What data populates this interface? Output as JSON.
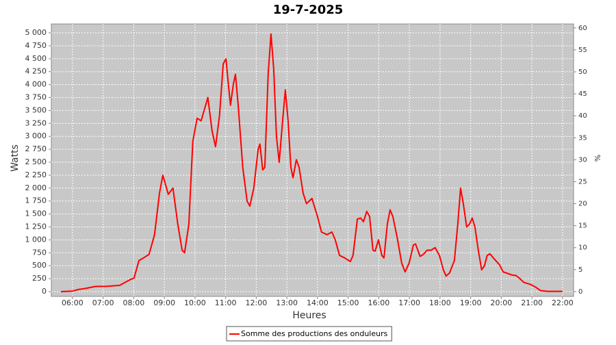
{
  "chart_data": {
    "type": "line",
    "title": "19-7-2025",
    "x_label": "Heures",
    "y_label": "Watts",
    "y2_label": "%",
    "x": [
      5.62,
      6.0,
      6.2,
      6.42,
      6.76,
      7.09,
      7.54,
      7.88,
      8.01,
      8.17,
      8.32,
      8.5,
      8.68,
      8.84,
      8.95,
      9.13,
      9.28,
      9.44,
      9.58,
      9.66,
      9.8,
      9.93,
      10.07,
      10.2,
      10.42,
      10.56,
      10.67,
      10.8,
      10.92,
      11.01,
      11.09,
      11.16,
      11.25,
      11.32,
      11.41,
      11.56,
      11.7,
      11.79,
      11.92,
      12.06,
      12.12,
      12.21,
      12.28,
      12.39,
      12.48,
      12.57,
      12.66,
      12.75,
      12.86,
      12.95,
      13.04,
      13.13,
      13.2,
      13.31,
      13.4,
      13.53,
      13.64,
      13.82,
      14.0,
      14.13,
      14.31,
      14.47,
      14.58,
      14.72,
      14.89,
      15.07,
      15.16,
      15.3,
      15.41,
      15.5,
      15.61,
      15.7,
      15.81,
      15.88,
      15.99,
      16.1,
      16.17,
      16.28,
      16.37,
      16.46,
      16.6,
      16.75,
      16.86,
      16.99,
      17.13,
      17.2,
      17.35,
      17.46,
      17.58,
      17.71,
      17.84,
      17.98,
      18.11,
      18.2,
      18.31,
      18.47,
      18.58,
      18.67,
      18.76,
      18.87,
      18.96,
      19.05,
      19.14,
      19.25,
      19.36,
      19.45,
      19.54,
      19.63,
      19.77,
      19.94,
      20.06,
      20.21,
      20.35,
      20.48,
      20.61,
      20.73,
      20.95,
      21.11,
      21.28,
      21.51,
      22.0
    ],
    "series": [
      {
        "name": "Somme des productions des onduleurs",
        "color": "#ff0000",
        "values": [
          0,
          10,
          40,
          60,
          100,
          100,
          120,
          230,
          260,
          600,
          650,
          720,
          1100,
          1900,
          2250,
          1880,
          2000,
          1300,
          800,
          750,
          1300,
          2900,
          3350,
          3300,
          3750,
          3100,
          2800,
          3400,
          4400,
          4500,
          4000,
          3600,
          4000,
          4200,
          3600,
          2400,
          1750,
          1650,
          2000,
          2750,
          2850,
          2350,
          2400,
          4200,
          4980,
          4300,
          3000,
          2500,
          3300,
          3900,
          3300,
          2400,
          2200,
          2550,
          2400,
          1900,
          1700,
          1800,
          1450,
          1150,
          1100,
          1150,
          1000,
          700,
          650,
          580,
          700,
          1400,
          1420,
          1350,
          1550,
          1450,
          800,
          780,
          1000,
          700,
          650,
          1300,
          1580,
          1450,
          1050,
          550,
          380,
          550,
          900,
          920,
          680,
          720,
          800,
          800,
          850,
          700,
          420,
          300,
          360,
          600,
          1300,
          2000,
          1700,
          1250,
          1300,
          1420,
          1250,
          800,
          420,
          500,
          700,
          730,
          630,
          520,
          380,
          350,
          320,
          310,
          250,
          180,
          140,
          90,
          20,
          5,
          5
        ]
      }
    ],
    "xlim": [
      5.31,
      22.36
    ],
    "xticks": [
      {
        "value": 6,
        "label": "06:00"
      },
      {
        "value": 7,
        "label": "07:00"
      },
      {
        "value": 8,
        "label": "08:00"
      },
      {
        "value": 9,
        "label": "09:00"
      },
      {
        "value": 10,
        "label": "10:00"
      },
      {
        "value": 11,
        "label": "11:00"
      },
      {
        "value": 12,
        "label": "12:00"
      },
      {
        "value": 13,
        "label": "13:00"
      },
      {
        "value": 14,
        "label": "14:00"
      },
      {
        "value": 15,
        "label": "15:00"
      },
      {
        "value": 16,
        "label": "16:00"
      },
      {
        "value": 17,
        "label": "17:00"
      },
      {
        "value": 18,
        "label": "18:00"
      },
      {
        "value": 19,
        "label": "19:00"
      },
      {
        "value": 20,
        "label": "20:00"
      },
      {
        "value": 21,
        "label": "21:00"
      },
      {
        "value": 22,
        "label": "22:00"
      }
    ],
    "ylim": [
      -93,
      5172
    ],
    "yticks": [
      0,
      250,
      500,
      750,
      {
        "value": 1000,
        "label": "1 000"
      },
      {
        "value": 1250,
        "label": "1 250"
      },
      {
        "value": 1500,
        "label": "1 500"
      },
      {
        "value": 1750,
        "label": "1 750"
      },
      {
        "value": 2000,
        "label": "2 000"
      },
      {
        "value": 2250,
        "label": "2 250"
      },
      {
        "value": 2500,
        "label": "2 500"
      },
      {
        "value": 2750,
        "label": "2 750"
      },
      {
        "value": 3000,
        "label": "3 000"
      },
      {
        "value": 3250,
        "label": "3 250"
      },
      {
        "value": 3500,
        "label": "3 500"
      },
      {
        "value": 3750,
        "label": "3 750"
      },
      {
        "value": 4000,
        "label": "4 000"
      },
      {
        "value": 4250,
        "label": "4 250"
      },
      {
        "value": 4500,
        "label": "4 500"
      },
      {
        "value": 4750,
        "label": "4 750"
      },
      {
        "value": 5000,
        "label": "5 000"
      }
    ],
    "y2lim": [
      -1.1,
      60.9
    ],
    "y2ticks": [
      0,
      5,
      10,
      15,
      20,
      25,
      30,
      35,
      40,
      45,
      50,
      55,
      60
    ],
    "grid": true,
    "legend": "bottom",
    "plot_background": "#c8c8c8"
  }
}
